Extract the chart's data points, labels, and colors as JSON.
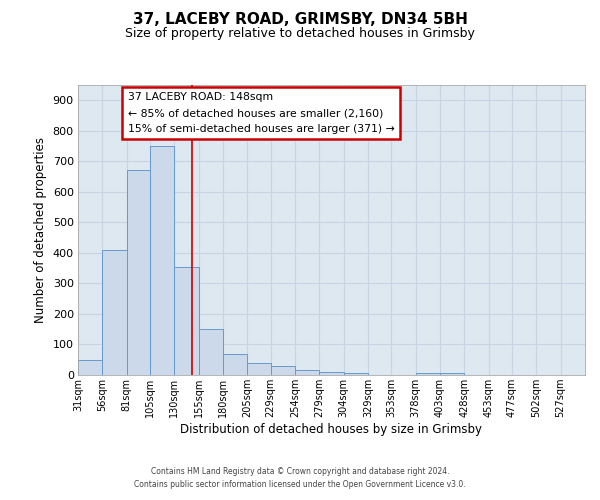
{
  "title1": "37, LACEBY ROAD, GRIMSBY, DN34 5BH",
  "title2": "Size of property relative to detached houses in Grimsby",
  "xlabel": "Distribution of detached houses by size in Grimsby",
  "ylabel": "Number of detached properties",
  "bar_left_edges": [
    31,
    56,
    81,
    105,
    130,
    155,
    180,
    205,
    229,
    254,
    279,
    304,
    329,
    353,
    378,
    403,
    428,
    453,
    477,
    502
  ],
  "bar_heights": [
    50,
    410,
    670,
    750,
    355,
    150,
    70,
    38,
    30,
    15,
    10,
    8,
    0,
    0,
    8,
    8,
    0,
    0,
    0,
    0
  ],
  "bar_widths": [
    25,
    25,
    24,
    25,
    25,
    25,
    25,
    24,
    25,
    25,
    25,
    25,
    24,
    25,
    25,
    25,
    25,
    24,
    25,
    25
  ],
  "bar_color": "#ccd9ea",
  "bar_edgecolor": "#6699cc",
  "vline_x": 148,
  "vline_color": "#cc0000",
  "annotation_line1": "37 LACEBY ROAD: 148sqm",
  "annotation_line2": "← 85% of detached houses are smaller (2,160)",
  "annotation_line3": "15% of semi-detached houses are larger (371) →",
  "annotation_box_edgecolor": "#cc0000",
  "xtick_labels": [
    "31sqm",
    "56sqm",
    "81sqm",
    "105sqm",
    "130sqm",
    "155sqm",
    "180sqm",
    "205sqm",
    "229sqm",
    "254sqm",
    "279sqm",
    "304sqm",
    "329sqm",
    "353sqm",
    "378sqm",
    "403sqm",
    "428sqm",
    "453sqm",
    "477sqm",
    "502sqm",
    "527sqm"
  ],
  "xtick_positions": [
    31,
    56,
    81,
    105,
    130,
    155,
    180,
    205,
    229,
    254,
    279,
    304,
    329,
    353,
    378,
    403,
    428,
    453,
    477,
    502,
    527
  ],
  "xlim_left": 31,
  "xlim_right": 552,
  "ylim": [
    0,
    950
  ],
  "yticks": [
    0,
    100,
    200,
    300,
    400,
    500,
    600,
    700,
    800,
    900
  ],
  "grid_color": "#c8d4e4",
  "bg_color": "#dde8f0",
  "footer1": "Contains HM Land Registry data © Crown copyright and database right 2024.",
  "footer2": "Contains public sector information licensed under the Open Government Licence v3.0."
}
